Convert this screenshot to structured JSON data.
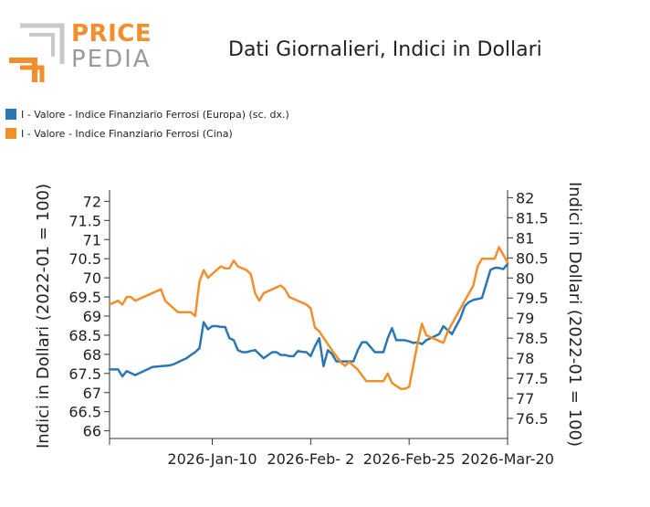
{
  "brand": {
    "price": "PRICE",
    "pedia": "PEDIA"
  },
  "colors": {
    "blue": "#2b77b3",
    "orange": "#f28e2b",
    "logo_gray": "#9a9a9a"
  },
  "chart_data": {
    "type": "line",
    "title": "Dati Giornalieri, Indici in Dollari",
    "legend_placement": "top-left",
    "grid": false,
    "x_tick_labels": [
      "2026-Jan-10",
      "2026-Feb- 2",
      "2026-Feb-25",
      "2026-Mar-20"
    ],
    "x_ticks": [
      "2025-12-17",
      "2026-01-10",
      "2026-02-02",
      "2026-02-25",
      "2026-03-20"
    ],
    "y_left": {
      "label": "Indici in Dollari (2022-01 = 100)",
      "range": [
        65.8,
        72.2
      ],
      "ticks": [
        "66",
        "66.5",
        "67",
        "67.5",
        "68",
        "68.5",
        "69",
        "69.5",
        "70",
        "70.5",
        "71",
        "71.5",
        "72"
      ]
    },
    "y_right": {
      "label": "Indici in Dollari (2022-01 = 100)",
      "range": [
        76.0,
        82.1
      ],
      "ticks": [
        "76.5",
        "77",
        "77.5",
        "78",
        "78.5",
        "79",
        "79.5",
        "80",
        "80.5",
        "81",
        "81.5",
        "82"
      ]
    },
    "series": [
      {
        "name": "I - Valore - Indice Finanziario Ferrosi (Europa) (sc. dx.)",
        "axis": "right",
        "color": "#2b77b3",
        "x": [
          "2025-12-17",
          "2025-12-18",
          "2025-12-19",
          "2025-12-20",
          "2025-12-21",
          "2025-12-23",
          "2025-12-25",
          "2025-12-27",
          "2025-12-29",
          "2025-12-31",
          "2026-01-01",
          "2026-01-02",
          "2026-01-03",
          "2026-01-04",
          "2026-01-05",
          "2026-01-06",
          "2026-01-07",
          "2026-01-08",
          "2026-01-09",
          "2026-01-10",
          "2026-01-11",
          "2026-01-12",
          "2026-01-13",
          "2026-01-14",
          "2026-01-15",
          "2026-01-16",
          "2026-01-17",
          "2026-01-18",
          "2026-01-19",
          "2026-01-20",
          "2026-01-22",
          "2026-01-24",
          "2026-01-25",
          "2026-01-26",
          "2026-01-27",
          "2026-01-28",
          "2026-01-29",
          "2026-01-30",
          "2026-01-31",
          "2026-02-01",
          "2026-02-02",
          "2026-02-03",
          "2026-02-04",
          "2026-02-05",
          "2026-02-06",
          "2026-02-07",
          "2026-02-08",
          "2026-02-10",
          "2026-02-12",
          "2026-02-13",
          "2026-02-14",
          "2026-02-15",
          "2026-02-17",
          "2026-02-18",
          "2026-02-19",
          "2026-02-20",
          "2026-02-21",
          "2026-02-22",
          "2026-02-23",
          "2026-02-24",
          "2026-02-25",
          "2026-02-26",
          "2026-02-27",
          "2026-02-28",
          "2026-03-01",
          "2026-03-02",
          "2026-03-04",
          "2026-03-05",
          "2026-03-06",
          "2026-03-07",
          "2026-03-08",
          "2026-03-09",
          "2026-03-10",
          "2026-03-11",
          "2026-03-12",
          "2026-03-14",
          "2026-03-15",
          "2026-03-16",
          "2026-03-17",
          "2026-03-18",
          "2026-03-19",
          "2026-03-20"
        ],
        "y": [
          77.72,
          77.72,
          77.72,
          77.55,
          77.68,
          77.58,
          77.68,
          77.78,
          77.8,
          77.82,
          77.85,
          77.9,
          77.95,
          78.0,
          78.08,
          78.15,
          78.25,
          78.9,
          78.72,
          78.8,
          78.8,
          78.78,
          78.78,
          78.5,
          78.45,
          78.2,
          78.15,
          78.15,
          78.18,
          78.2,
          78.0,
          78.15,
          78.15,
          78.08,
          78.08,
          78.05,
          78.05,
          78.18,
          78.16,
          78.15,
          78.05,
          78.3,
          78.5,
          77.8,
          78.2,
          78.1,
          77.92,
          77.92,
          77.92,
          78.2,
          78.4,
          78.4,
          78.15,
          78.15,
          78.15,
          78.5,
          78.75,
          78.45,
          78.45,
          78.45,
          78.42,
          78.38,
          78.4,
          78.35,
          78.45,
          78.5,
          78.6,
          78.8,
          78.7,
          78.6,
          78.8,
          79.0,
          79.3,
          79.4,
          79.45,
          79.5,
          79.85,
          80.2,
          80.25,
          80.25,
          80.22,
          80.35
        ]
      },
      {
        "name": "I - Valore - Indice Finanziario Ferrosi (Cina)",
        "axis": "left",
        "color": "#f28e2b",
        "x": [
          "2025-12-17",
          "2025-12-19",
          "2025-12-20",
          "2025-12-21",
          "2025-12-22",
          "2025-12-23",
          "2025-12-29",
          "2025-12-30",
          "2025-12-31",
          "2026-01-02",
          "2026-01-03",
          "2026-01-05",
          "2026-01-06",
          "2026-01-07",
          "2026-01-08",
          "2026-01-09",
          "2026-01-11",
          "2026-01-12",
          "2026-01-13",
          "2026-01-14",
          "2026-01-15",
          "2026-01-16",
          "2026-01-18",
          "2026-01-19",
          "2026-01-20",
          "2026-01-21",
          "2026-01-22",
          "2026-01-24",
          "2026-01-26",
          "2026-01-27",
          "2026-01-28",
          "2026-02-01",
          "2026-02-02",
          "2026-02-03",
          "2026-02-04",
          "2026-02-07",
          "2026-02-09",
          "2026-02-10",
          "2026-02-11",
          "2026-02-12",
          "2026-02-13",
          "2026-02-15",
          "2026-02-16",
          "2026-02-19",
          "2026-02-20",
          "2026-02-21",
          "2026-02-23",
          "2026-02-24",
          "2026-02-25",
          "2026-02-27",
          "2026-02-28",
          "2026-03-01",
          "2026-03-03",
          "2026-03-05",
          "2026-03-06",
          "2026-03-07",
          "2026-03-09",
          "2026-03-10",
          "2026-03-11",
          "2026-03-12",
          "2026-03-13",
          "2026-03-14",
          "2026-03-15",
          "2026-03-16",
          "2026-03-17",
          "2026-03-18",
          "2026-03-19",
          "2026-03-20"
        ],
        "y": [
          69.3,
          69.4,
          69.3,
          69.5,
          69.5,
          69.4,
          69.7,
          69.4,
          69.3,
          69.1,
          69.1,
          69.1,
          69.0,
          69.9,
          70.2,
          70.0,
          70.2,
          70.3,
          70.25,
          70.25,
          70.45,
          70.3,
          70.2,
          70.1,
          69.6,
          69.4,
          69.6,
          69.7,
          69.8,
          69.7,
          69.5,
          69.3,
          69.2,
          68.7,
          68.6,
          68.1,
          67.8,
          67.7,
          67.8,
          67.7,
          67.6,
          67.3,
          67.3,
          67.3,
          67.5,
          67.25,
          67.1,
          67.1,
          67.15,
          68.3,
          68.8,
          68.5,
          68.4,
          68.3,
          68.6,
          68.8,
          69.2,
          69.4,
          69.6,
          69.8,
          70.3,
          70.5,
          70.5,
          70.5,
          70.5,
          70.8,
          70.6,
          70.4
        ]
      }
    ]
  }
}
